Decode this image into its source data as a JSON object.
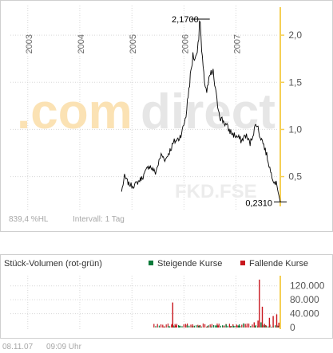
{
  "watermark": {
    "com": ".com",
    "direct": "direct",
    "symbol": "FKD.FSE"
  },
  "annotations": {
    "max": "2,1700",
    "min": "0,2310"
  },
  "footer_main": {
    "perf": "839,4 %HL",
    "interval": "Intervall: 1 Tag"
  },
  "volume": {
    "title": "Stück-Volumen (rot-grün)",
    "legend_up": "Steigende Kurse",
    "legend_down": "Fallende Kurse"
  },
  "timestamp": {
    "date": "08.11.07",
    "time": "09:09 Uhr"
  },
  "colors": {
    "up": "#0a7a3a",
    "down": "#c8161d",
    "accent": "#f5cf55",
    "line": "#000000"
  },
  "chart_data": [
    {
      "type": "line",
      "x_axis_labels": [
        "2003",
        "2004",
        "2005",
        "2006",
        "2007"
      ],
      "x_axis_label_dates": [
        "2003-01-01",
        "2004-01-01",
        "2005-01-01",
        "2006-01-01",
        "2007-01-01"
      ],
      "x_range": [
        "2002-09-01",
        "2007-11-08"
      ],
      "y_tick_labels": [
        "0,5",
        "1,0",
        "1,5",
        "2,0"
      ],
      "y_ticks": [
        0.5,
        1.0,
        1.5,
        2.0
      ],
      "ylim": [
        0.15,
        2.28
      ],
      "grid": true,
      "series": [
        {
          "x": [
            "2004-10-20",
            "2004-11-10",
            "2004-12-10",
            "2005-01-10",
            "2005-02-10",
            "2005-03-20",
            "2005-05-01",
            "2005-06-15",
            "2005-07-25",
            "2005-08-25",
            "2005-09-25",
            "2005-10-25",
            "2005-11-25",
            "2005-12-20",
            "2006-01-15",
            "2006-02-10",
            "2006-03-05",
            "2006-03-25",
            "2006-04-15",
            "2006-04-25",
            "2006-05-05",
            "2006-05-20",
            "2006-06-10",
            "2006-07-05",
            "2006-07-25",
            "2006-08-20",
            "2006-09-15",
            "2006-10-10",
            "2006-11-10",
            "2006-12-10",
            "2007-01-10",
            "2007-02-10",
            "2007-03-10",
            "2007-04-10",
            "2007-05-10",
            "2007-05-25",
            "2007-06-15",
            "2007-07-10",
            "2007-08-10",
            "2007-09-01",
            "2007-09-25",
            "2007-10-15",
            "2007-11-08"
          ],
          "y": [
            0.34,
            0.5,
            0.42,
            0.4,
            0.44,
            0.5,
            0.62,
            0.54,
            0.73,
            0.68,
            0.78,
            0.87,
            0.9,
            0.98,
            1.15,
            1.5,
            1.78,
            1.75,
            2.0,
            2.17,
            1.82,
            1.56,
            1.4,
            1.58,
            1.6,
            1.3,
            1.12,
            1.08,
            1.0,
            0.95,
            0.92,
            0.88,
            0.94,
            0.85,
            1.0,
            1.07,
            0.95,
            0.86,
            0.7,
            0.55,
            0.45,
            0.42,
            0.231
          ]
        }
      ]
    },
    {
      "type": "bar",
      "title": "Stück-Volumen (rot-grün)",
      "y_tick_labels": [
        "0",
        "40.000",
        "80.000",
        "120.000"
      ],
      "y_ticks": [
        0,
        40000,
        80000,
        120000
      ],
      "ylim": [
        0,
        140000
      ],
      "series": [
        {
          "name": "Steigende Kurse",
          "x": [
            "2005-09-10",
            "2005-10-20",
            "2005-11-25",
            "2006-01-20",
            "2006-02-25",
            "2006-04-10",
            "2006-07-10",
            "2006-08-15",
            "2006-10-20",
            "2006-12-10",
            "2007-01-20",
            "2007-02-20",
            "2007-05-10",
            "2007-06-22",
            "2007-07-15",
            "2007-10-20"
          ],
          "values": [
            4000,
            3000,
            5000,
            6000,
            4000,
            5000,
            3000,
            6000,
            9000,
            5000,
            9000,
            12000,
            4000,
            15000,
            6000,
            5000
          ]
        },
        {
          "name": "Fallende Kurse",
          "x": [
            "2005-08-10",
            "2005-10-05",
            "2005-10-10",
            "2005-11-01",
            "2006-01-10",
            "2006-03-01",
            "2006-04-20",
            "2006-06-10",
            "2006-08-25",
            "2006-10-05",
            "2006-11-20",
            "2007-01-05",
            "2007-03-15",
            "2007-05-05",
            "2007-06-01",
            "2007-06-10",
            "2007-07-01",
            "2007-07-25",
            "2007-08-20",
            "2007-09-15",
            "2007-10-10",
            "2007-10-25"
          ],
          "values": [
            3000,
            10000,
            72000,
            6000,
            8000,
            5000,
            7000,
            4000,
            6000,
            5000,
            4000,
            6000,
            5000,
            15000,
            20000,
            138000,
            60000,
            7000,
            28000,
            33000,
            38000,
            14000
          ]
        }
      ]
    }
  ]
}
